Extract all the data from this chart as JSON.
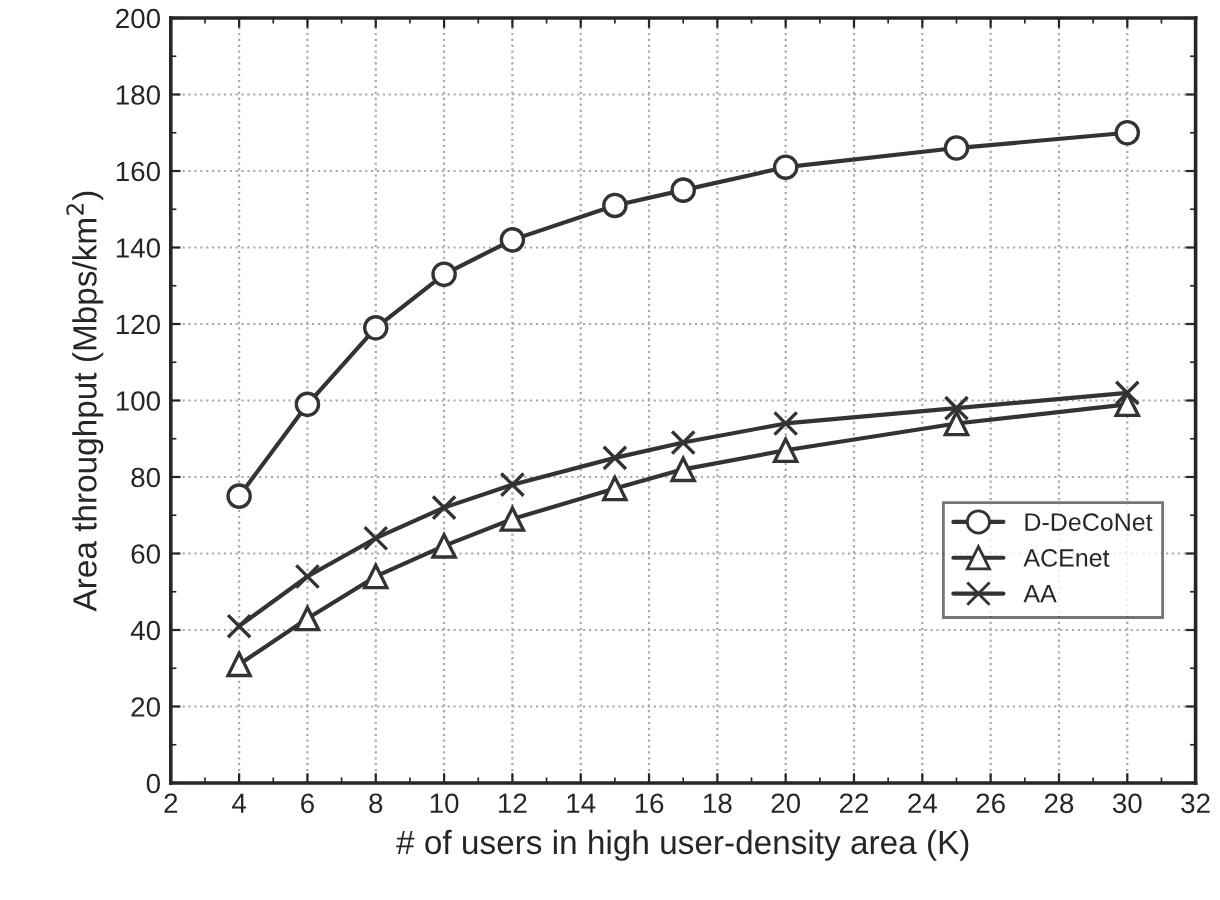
{
  "chart_data": {
    "type": "line",
    "xlabel": "# of users in high user-density area (K)",
    "ylabel": "Area throughput (Mbps/km$^{2}$)",
    "x": [
      4,
      6,
      8,
      10,
      12,
      15,
      17,
      20,
      25,
      30
    ],
    "series": [
      {
        "name": "D-DeCoNet",
        "color": "#333333",
        "marker": "circle",
        "values": [
          75,
          99,
          119,
          133,
          142,
          151,
          155,
          161,
          166,
          170
        ]
      },
      {
        "name": "ACEnet",
        "color": "#333333",
        "marker": "triangle",
        "values": [
          31,
          43,
          54,
          62,
          69,
          77,
          82,
          87,
          94,
          99
        ]
      },
      {
        "name": "AA",
        "color": "#333333",
        "marker": "cross",
        "values": [
          41,
          54,
          64,
          72,
          78,
          85,
          89,
          94,
          98,
          102
        ]
      }
    ],
    "xlim": [
      2,
      32
    ],
    "xticks": [
      2,
      4,
      6,
      8,
      10,
      12,
      14,
      16,
      18,
      20,
      22,
      24,
      26,
      28,
      30,
      32
    ],
    "ylim": [
      0,
      200
    ],
    "yticks": [
      0,
      20,
      40,
      60,
      80,
      100,
      120,
      140,
      160,
      180,
      200
    ],
    "grid": true,
    "legend": "bottom right",
    "line_style": "solid"
  }
}
